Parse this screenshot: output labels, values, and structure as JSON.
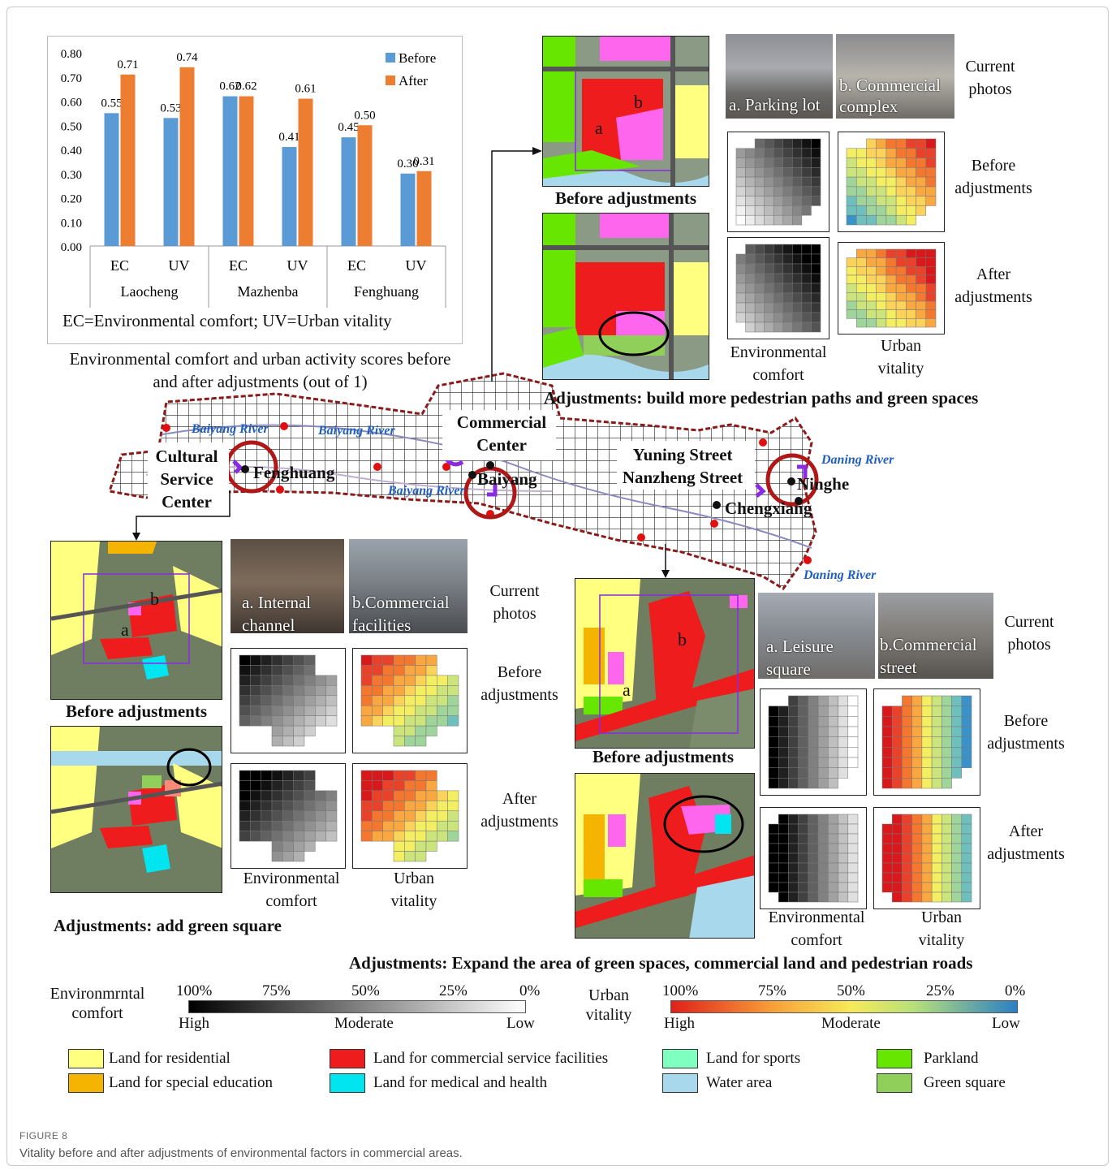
{
  "chart_data": {
    "type": "bar",
    "groups": [
      "Laocheng",
      "Mazhenba",
      "Fenghuang"
    ],
    "categories": [
      "EC",
      "UV",
      "EC",
      "UV",
      "EC",
      "UV"
    ],
    "series": [
      {
        "name": "Before",
        "color": "#5b9bd5",
        "values": [
          0.55,
          0.53,
          0.62,
          0.41,
          0.45,
          0.3
        ]
      },
      {
        "name": "After",
        "color": "#ed7d31",
        "values": [
          0.71,
          0.74,
          0.62,
          0.61,
          0.5,
          0.31
        ]
      }
    ],
    "data_labels": {
      "Before": [
        "0.55",
        "0.53",
        "0.62",
        "0.41",
        "0.45",
        "0.30"
      ],
      "After": [
        "0.71",
        "0.74",
        "0.62",
        "0.61",
        "0.50",
        "0.31"
      ]
    },
    "ylim": [
      0,
      0.8
    ],
    "yticks": [
      "0.00",
      "0.10",
      "0.20",
      "0.30",
      "0.40",
      "0.50",
      "0.60",
      "0.70",
      "0.80"
    ],
    "legend_position": "top-right",
    "grid": false,
    "footnote": "EC=Environmental comfort; UV=Urban vitality",
    "caption": "Environmental comfort and urban activity scores before and after adjustments (out of 1)"
  },
  "top_panel": {
    "before_label": "Before adjustments",
    "photo_a": "a. Parking lot",
    "photo_b": "b. Commercial complex",
    "current_photos": "Current photos",
    "row_before": "Before adjustments",
    "row_after": "After adjustments",
    "col_ec": "Environmental comfort",
    "col_uv": "Urban vitality",
    "adjustment": "Adjustments: build more pedestrian paths and green spaces",
    "map_a": "a",
    "map_b": "b"
  },
  "center_map": {
    "cultural_center": "Cultural Service Center",
    "commercial_center": "Commercial Center",
    "yuning": "Yuning Street Nanzheng Street",
    "places": [
      "Fenghuang",
      "Baiyang",
      "Chengxiang",
      "Ninghe"
    ],
    "rivers": [
      "Baiyang River",
      "Baiyang River",
      "Baiyang River",
      "Daning River",
      "Daning River"
    ]
  },
  "left_panel": {
    "before_label": "Before adjustments",
    "photo_a": "a. Internal channel",
    "photo_b": "b.Commercial facilities",
    "current_photos": "Current photos",
    "row_before": "Before adjustments",
    "row_after": "After adjustments",
    "col_ec": "Environmental comfort",
    "col_uv": "Urban vitality",
    "adjustment": "Adjustments: add green square",
    "map_a": "a",
    "map_b": "b"
  },
  "right_panel": {
    "before_label": "Before adjustments",
    "photo_a": "a. Leisure square",
    "photo_b": "b.Commercial street",
    "current_photos": "Current photos",
    "row_before": "Before adjustments",
    "row_after": "After adjustments",
    "col_ec": "Environmental comfort",
    "col_uv": "Urban vitality",
    "adjustment": "Adjustments: Expand the area of green spaces, commercial land and pedestrian roads",
    "map_a": "a",
    "map_b": "b"
  },
  "scales": {
    "ec_title": "Environmrntal comfort",
    "uv_title": "Urban vitality",
    "pcts": [
      "100%",
      "75%",
      "50%",
      "25%",
      "0%"
    ],
    "high": "High",
    "moderate": "Moderate",
    "low": "Low"
  },
  "land_legend": [
    {
      "label": "Land for residential",
      "color": "#ffff80"
    },
    {
      "label": "Land for special education",
      "color": "#f5b400"
    },
    {
      "label": "Land for commercial service facilities",
      "color": "#ee1c1c"
    },
    {
      "label": "Land for medical and health",
      "color": "#00e5f0"
    },
    {
      "label": "Land for sports",
      "color": "#7fffc0"
    },
    {
      "label": "Water area",
      "color": "#a8d8ec"
    },
    {
      "label": "Parkland",
      "color": "#66e600"
    },
    {
      "label": "Green square",
      "color": "#8fcf5a"
    }
  ],
  "figure": {
    "label": "FIGURE 8",
    "caption": "Vitality before and after adjustments of environmental factors in commercial areas."
  }
}
